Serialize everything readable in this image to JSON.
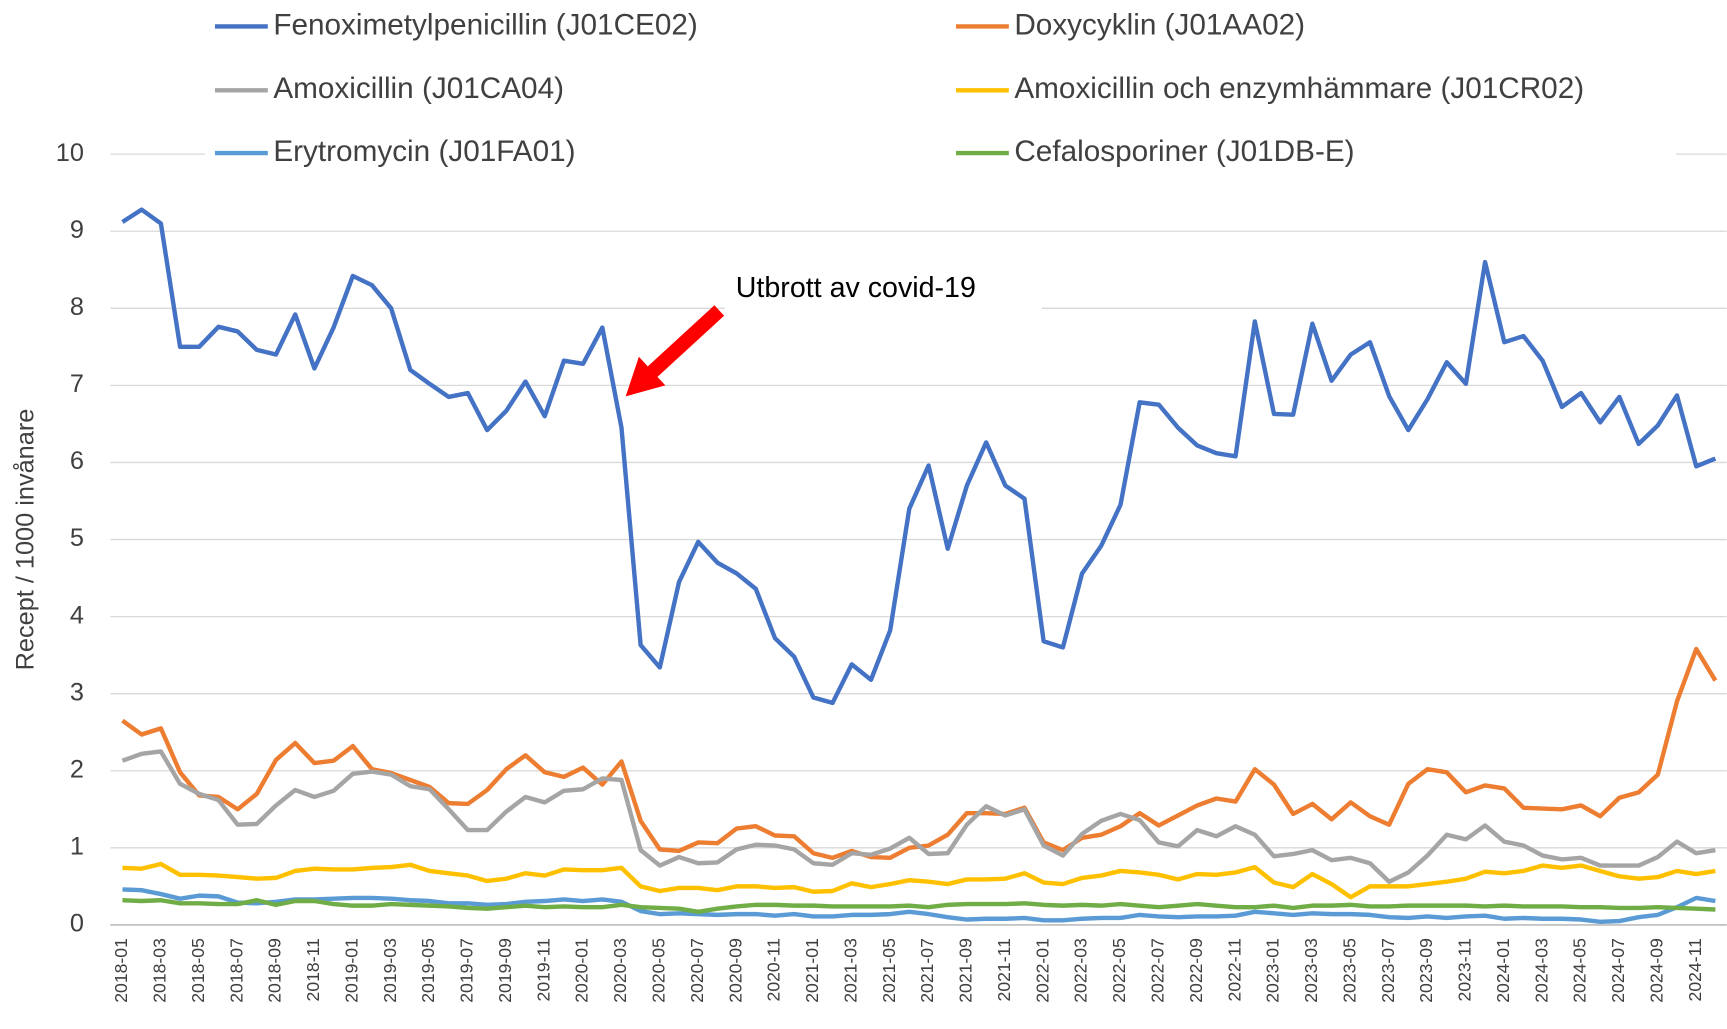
{
  "chart_data": {
    "type": "line",
    "y_label": "Recept / 1000 invånare",
    "legend": "top",
    "grid": true,
    "ylim": [
      0,
      10
    ],
    "yticks": [
      0,
      1,
      2,
      3,
      4,
      5,
      6,
      7,
      8,
      9,
      10
    ],
    "annotations": [
      {
        "text": "Utbrott av covid-19"
      }
    ],
    "categories": [
      "2018-01",
      null,
      "2018-03",
      null,
      "2018-05",
      null,
      "2018-07",
      null,
      "2018-09",
      null,
      "2018-11",
      null,
      "2019-01",
      null,
      "2019-03",
      null,
      "2019-05",
      null,
      "2019-07",
      null,
      "2019-09",
      null,
      "2019-11",
      null,
      "2020-01",
      null,
      "2020-03",
      null,
      "2020-05",
      null,
      "2020-07",
      null,
      "2020-09",
      null,
      "2020-11",
      null,
      "2021-01",
      null,
      "2021-03",
      null,
      "2021-05",
      null,
      "2021-07",
      null,
      "2021-09",
      null,
      "2021-11",
      null,
      "2022-01",
      null,
      "2022-03",
      null,
      "2022-05",
      null,
      "2022-07",
      null,
      "2022-09",
      null,
      "2022-11",
      null,
      "2023-01",
      null,
      "2023-03",
      null,
      "2023-05",
      null,
      "2023-07",
      null,
      "2023-09",
      null,
      "2023-11",
      null,
      "2024-01",
      null,
      "2024-03",
      null,
      "2024-05",
      null,
      "2024-07",
      null,
      "2024-09",
      null,
      "2024-11",
      null
    ],
    "series": [
      {
        "name": "Fenoximetylpenicillin (J01CE02)",
        "color": "#4472c4",
        "values": [
          9.12,
          9.28,
          9.1,
          7.5,
          7.5,
          7.76,
          7.7,
          7.46,
          7.4,
          7.92,
          7.22,
          7.75,
          8.42,
          8.3,
          8.0,
          7.2,
          7.02,
          6.85,
          6.9,
          6.42,
          6.67,
          7.05,
          6.6,
          7.32,
          7.28,
          7.75,
          6.45,
          3.63,
          3.34,
          4.45,
          4.97,
          4.7,
          4.56,
          4.36,
          3.72,
          3.48,
          2.95,
          2.88,
          3.38,
          3.18,
          3.82,
          5.4,
          5.96,
          4.88,
          5.7,
          6.26,
          5.7,
          5.53,
          3.68,
          3.6,
          4.56,
          4.92,
          5.45,
          6.78,
          6.75,
          6.45,
          6.22,
          6.12,
          6.08,
          7.83,
          6.63,
          6.62,
          7.8,
          7.06,
          7.4,
          7.56,
          6.86,
          6.42,
          6.82,
          7.3,
          7.02,
          8.6,
          7.56,
          7.64,
          7.32,
          6.72,
          6.9,
          6.52,
          6.85,
          6.24,
          6.48,
          6.87,
          5.95,
          6.05
        ]
      },
      {
        "name": "Doxycyklin (J01AA02)",
        "color": "#ed7d31",
        "values": [
          2.65,
          2.47,
          2.55,
          1.98,
          1.68,
          1.66,
          1.5,
          1.7,
          2.14,
          2.36,
          2.1,
          2.13,
          2.32,
          2.02,
          1.97,
          1.88,
          1.79,
          1.58,
          1.57,
          1.75,
          2.02,
          2.2,
          1.98,
          1.92,
          2.04,
          1.82,
          2.12,
          1.35,
          0.98,
          0.96,
          1.07,
          1.06,
          1.25,
          1.28,
          1.16,
          1.15,
          0.93,
          0.87,
          0.96,
          0.88,
          0.87,
          1.0,
          1.03,
          1.17,
          1.45,
          1.45,
          1.44,
          1.52,
          1.07,
          0.97,
          1.13,
          1.17,
          1.28,
          1.45,
          1.29,
          1.42,
          1.55,
          1.64,
          1.6,
          2.02,
          1.82,
          1.44,
          1.57,
          1.37,
          1.59,
          1.41,
          1.3,
          1.83,
          2.02,
          1.98,
          1.72,
          1.81,
          1.77,
          1.52,
          1.51,
          1.5,
          1.55,
          1.41,
          1.65,
          1.72,
          1.95,
          2.9,
          3.58,
          3.17
        ]
      },
      {
        "name": "Amoxicillin (J01CA04)",
        "color": "#a5a5a5",
        "values": [
          2.13,
          2.22,
          2.25,
          1.83,
          1.7,
          1.62,
          1.3,
          1.31,
          1.55,
          1.75,
          1.66,
          1.74,
          1.96,
          1.99,
          1.95,
          1.8,
          1.76,
          1.5,
          1.23,
          1.23,
          1.47,
          1.66,
          1.59,
          1.74,
          1.76,
          1.9,
          1.88,
          0.97,
          0.77,
          0.88,
          0.8,
          0.81,
          0.98,
          1.04,
          1.03,
          0.98,
          0.8,
          0.78,
          0.93,
          0.91,
          0.99,
          1.13,
          0.92,
          0.93,
          1.3,
          1.54,
          1.42,
          1.5,
          1.03,
          0.9,
          1.18,
          1.35,
          1.44,
          1.36,
          1.07,
          1.02,
          1.23,
          1.15,
          1.28,
          1.17,
          0.89,
          0.92,
          0.97,
          0.84,
          0.87,
          0.8,
          0.56,
          0.68,
          0.9,
          1.17,
          1.11,
          1.29,
          1.08,
          1.03,
          0.9,
          0.85,
          0.87,
          0.77,
          0.77,
          0.77,
          0.88,
          1.08,
          0.93,
          0.97
        ]
      },
      {
        "name": "Amoxicillin och enzymhämmare (J01CR02)",
        "color": "#ffc000",
        "values": [
          0.74,
          0.73,
          0.79,
          0.65,
          0.65,
          0.64,
          0.62,
          0.6,
          0.61,
          0.7,
          0.73,
          0.72,
          0.72,
          0.74,
          0.75,
          0.78,
          0.7,
          0.67,
          0.64,
          0.57,
          0.6,
          0.67,
          0.64,
          0.72,
          0.71,
          0.71,
          0.74,
          0.5,
          0.44,
          0.48,
          0.48,
          0.45,
          0.5,
          0.5,
          0.48,
          0.49,
          0.43,
          0.44,
          0.54,
          0.49,
          0.53,
          0.58,
          0.56,
          0.53,
          0.59,
          0.59,
          0.6,
          0.67,
          0.55,
          0.53,
          0.61,
          0.64,
          0.7,
          0.68,
          0.65,
          0.59,
          0.66,
          0.65,
          0.68,
          0.75,
          0.55,
          0.49,
          0.66,
          0.53,
          0.36,
          0.5,
          0.5,
          0.5,
          0.53,
          0.56,
          0.6,
          0.69,
          0.67,
          0.7,
          0.77,
          0.74,
          0.77,
          0.7,
          0.63,
          0.6,
          0.62,
          0.7,
          0.66,
          0.7
        ]
      },
      {
        "name": "Erytromycin (J01FA01)",
        "color": "#5b9bd5",
        "values": [
          0.46,
          0.45,
          0.4,
          0.34,
          0.38,
          0.37,
          0.29,
          0.28,
          0.3,
          0.33,
          0.33,
          0.34,
          0.35,
          0.35,
          0.34,
          0.32,
          0.31,
          0.28,
          0.28,
          0.26,
          0.27,
          0.3,
          0.31,
          0.33,
          0.31,
          0.33,
          0.3,
          0.18,
          0.14,
          0.15,
          0.14,
          0.13,
          0.14,
          0.14,
          0.12,
          0.14,
          0.11,
          0.11,
          0.13,
          0.13,
          0.14,
          0.17,
          0.14,
          0.1,
          0.07,
          0.08,
          0.08,
          0.09,
          0.06,
          0.06,
          0.08,
          0.09,
          0.09,
          0.13,
          0.11,
          0.1,
          0.11,
          0.11,
          0.12,
          0.17,
          0.15,
          0.13,
          0.15,
          0.14,
          0.14,
          0.13,
          0.1,
          0.09,
          0.11,
          0.09,
          0.11,
          0.12,
          0.08,
          0.09,
          0.08,
          0.08,
          0.07,
          0.04,
          0.05,
          0.1,
          0.13,
          0.23,
          0.35,
          0.31
        ]
      },
      {
        "name": "Cefalosporiner (J01DB-E)",
        "color": "#70ad47",
        "values": [
          0.32,
          0.31,
          0.32,
          0.28,
          0.28,
          0.27,
          0.27,
          0.32,
          0.26,
          0.31,
          0.31,
          0.27,
          0.25,
          0.25,
          0.27,
          0.26,
          0.25,
          0.24,
          0.22,
          0.21,
          0.23,
          0.25,
          0.23,
          0.24,
          0.23,
          0.23,
          0.26,
          0.23,
          0.22,
          0.21,
          0.17,
          0.21,
          0.24,
          0.26,
          0.26,
          0.25,
          0.25,
          0.24,
          0.24,
          0.24,
          0.24,
          0.25,
          0.23,
          0.26,
          0.27,
          0.27,
          0.27,
          0.28,
          0.26,
          0.25,
          0.26,
          0.25,
          0.27,
          0.25,
          0.23,
          0.25,
          0.27,
          0.25,
          0.23,
          0.23,
          0.25,
          0.22,
          0.25,
          0.25,
          0.26,
          0.24,
          0.24,
          0.25,
          0.25,
          0.25,
          0.25,
          0.24,
          0.25,
          0.24,
          0.24,
          0.24,
          0.23,
          0.23,
          0.22,
          0.22,
          0.23,
          0.22,
          0.21,
          0.2
        ]
      }
    ]
  }
}
